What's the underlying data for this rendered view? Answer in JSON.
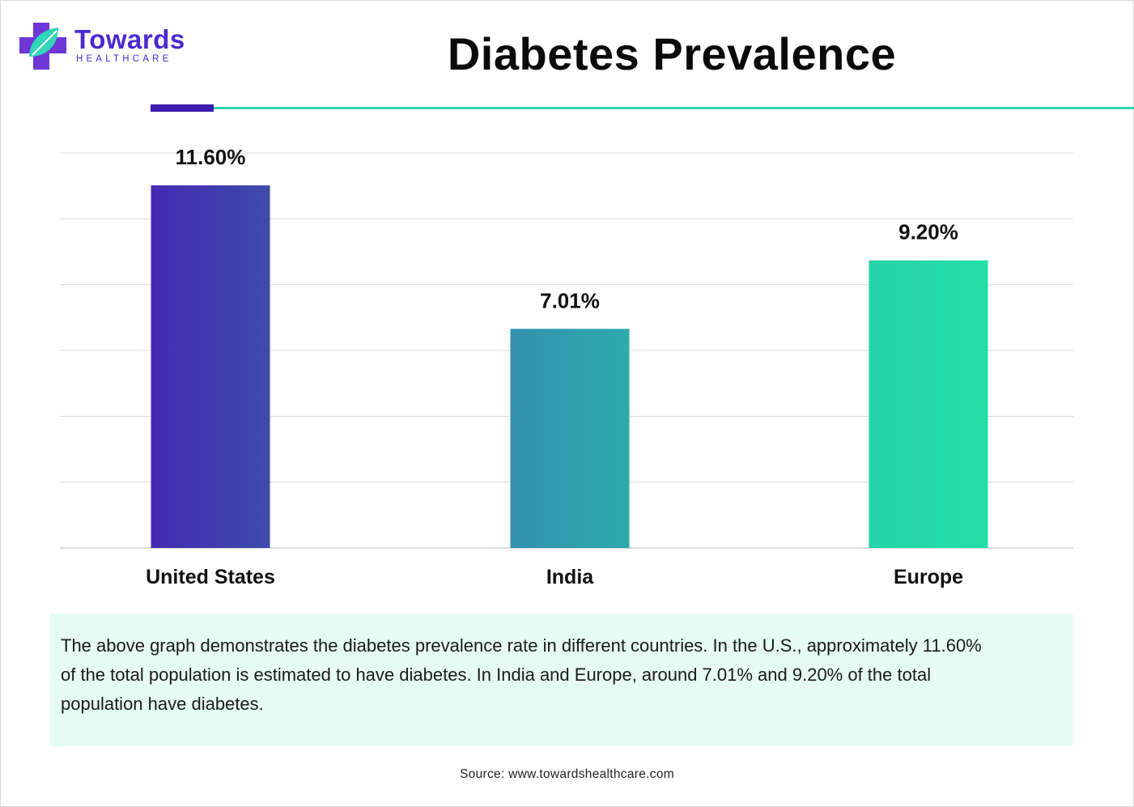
{
  "brand": {
    "name": "Towards",
    "sub": "HEALTHCARE",
    "colors": {
      "purple": "#4a2ad1",
      "teal": "#2fd6a5"
    }
  },
  "chart_data": {
    "type": "bar",
    "title": "Diabetes Prevalence",
    "categories": [
      "United States",
      "India",
      "Europe"
    ],
    "values": [
      11.6,
      7.01,
      9.2
    ],
    "value_labels": [
      "11.60%",
      "7.01%",
      "9.20%"
    ],
    "ylim": [
      0,
      12
    ],
    "grid": true,
    "xlabel": "",
    "ylabel": "",
    "colors": [
      {
        "from": "#442ab3",
        "to": "#3d4cab"
      },
      {
        "from": "#3391b0",
        "to": "#2cabac"
      },
      {
        "from": "#27d2aa",
        "to": "#22dfa7"
      }
    ]
  },
  "description": "The above graph demonstrates the diabetes prevalence rate in different countries. In the U.S., approximately 11.60% of the total population is estimated to have diabetes. In India and Europe, around 7.01% and 9.20% of the total population have diabetes.",
  "source": "Source: www.towardshealthcare.com"
}
